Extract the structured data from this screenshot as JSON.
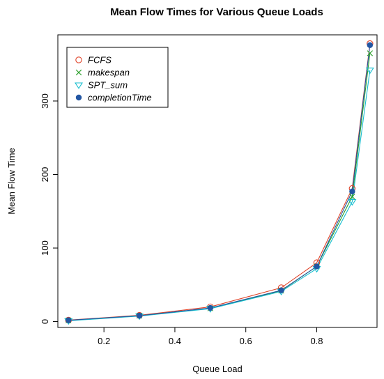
{
  "chart_data": {
    "type": "line",
    "title": "Mean Flow Times for Various Queue Loads",
    "xlabel": "Queue Load",
    "ylabel": "Mean Flow Time",
    "xlim": [
      0.07,
      0.97
    ],
    "ylim": [
      -8,
      390
    ],
    "xticks": [
      0.2,
      0.4,
      0.6,
      0.8
    ],
    "yticks": [
      0,
      100,
      200,
      300
    ],
    "x": [
      0.1,
      0.3,
      0.5,
      0.7,
      0.8,
      0.9,
      0.95
    ],
    "series": [
      {
        "name": "FCFS",
        "marker": "circle-open",
        "color": "#e0442a",
        "values": [
          2,
          8.5,
          20,
          46,
          80,
          181,
          378
        ]
      },
      {
        "name": "makespan",
        "marker": "x",
        "color": "#2ca02c",
        "values": [
          1.5,
          8,
          18,
          42,
          75,
          170,
          365
        ]
      },
      {
        "name": "SPT_sum",
        "marker": "triangle-down-open",
        "color": "#17becf",
        "values": [
          1,
          7.5,
          17.5,
          41,
          72,
          163,
          342
        ]
      },
      {
        "name": "completionTime",
        "marker": "circle-filled",
        "color": "#2356a3",
        "values": [
          1.8,
          8,
          18.5,
          42.5,
          75,
          177,
          376
        ]
      }
    ],
    "legend_position": "top-left",
    "grid": false
  }
}
